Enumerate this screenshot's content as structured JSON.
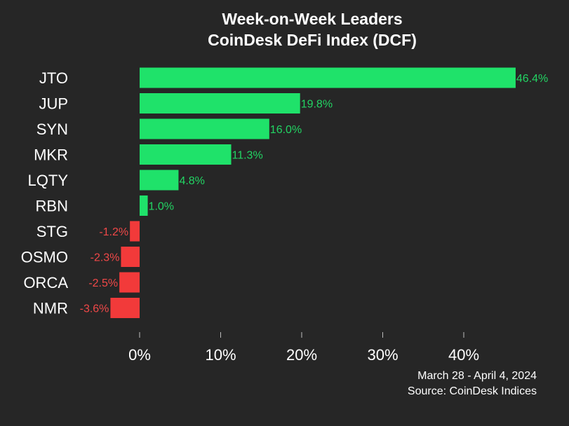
{
  "title_line1": "Week-on-Week Leaders",
  "title_line2": "CoinDesk DeFi Index (DCF)",
  "footer": {
    "date_range": "March 28 - April 4, 2024",
    "source": "Source: CoinDesk Indices"
  },
  "colors": {
    "background": "#262626",
    "positive": "#1fe26a",
    "negative": "#f23a3a",
    "positive_label": "#22d463",
    "negative_label": "#f04848",
    "text": "#ffffff"
  },
  "chart_data": {
    "type": "bar",
    "orientation": "horizontal",
    "categories": [
      "JTO",
      "JUP",
      "SYN",
      "MKR",
      "LQTY",
      "RBN",
      "STG",
      "OSMO",
      "ORCA",
      "NMR"
    ],
    "values": [
      46.4,
      19.8,
      16.0,
      11.3,
      4.8,
      1.0,
      -1.2,
      -2.3,
      -2.5,
      -3.6
    ],
    "value_labels": [
      "46.4%",
      "19.8%",
      "16.0%",
      "11.3%",
      "4.8%",
      "1.0%",
      "-1.2%",
      "-2.3%",
      "-2.5%",
      "-3.6%"
    ],
    "x_ticks": [
      0,
      10,
      20,
      30,
      40
    ],
    "x_tick_labels": [
      "0%",
      "10%",
      "20%",
      "30%",
      "40%"
    ],
    "xlim": [
      -5,
      46.4
    ],
    "grid": false,
    "legend": "none"
  }
}
